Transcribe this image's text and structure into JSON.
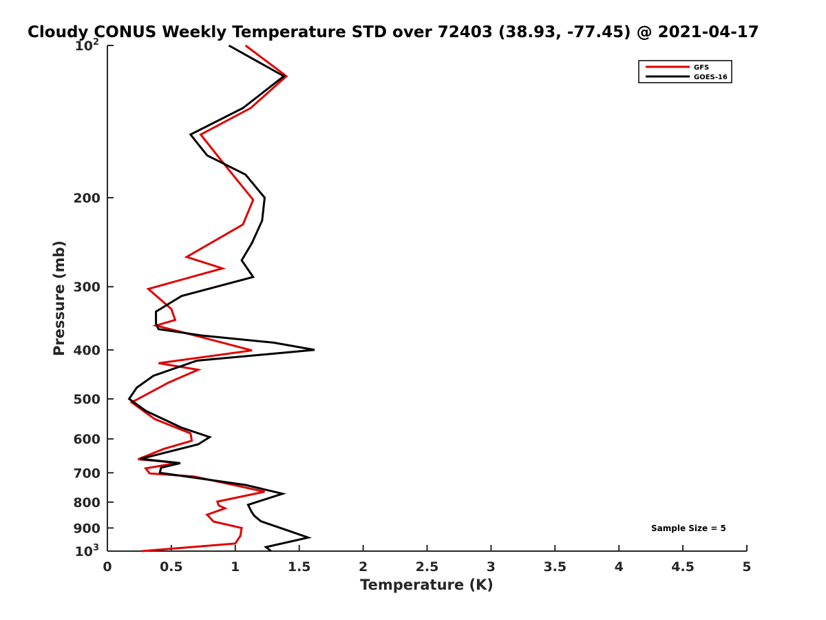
{
  "chart_data": {
    "type": "line",
    "title": "Cloudy CONUS Weekly Temperature STD over 72403 (38.93, -77.45) @ 2021-04-17",
    "xlabel": "Temperature (K)",
    "ylabel": "Pressure (mb)",
    "xlim": [
      0,
      5
    ],
    "ylim": [
      100,
      1000
    ],
    "y_scale": "log",
    "y_reversed": true,
    "x_ticks": [
      "0",
      "0.5",
      "1",
      "1.5",
      "2",
      "2.5",
      "3",
      "3.5",
      "4",
      "4.5",
      "5"
    ],
    "y_ticks": [
      {
        "value": 100,
        "base": "10",
        "exp": "2"
      },
      {
        "value": 200,
        "label": "200"
      },
      {
        "value": 300,
        "label": "300"
      },
      {
        "value": 400,
        "label": "400"
      },
      {
        "value": 500,
        "label": "500"
      },
      {
        "value": 600,
        "label": "600"
      },
      {
        "value": 700,
        "label": "700"
      },
      {
        "value": 800,
        "label": "800"
      },
      {
        "value": 900,
        "label": "900"
      },
      {
        "value": 1000,
        "base": "10",
        "exp": "3"
      }
    ],
    "legend_position": "top-right",
    "grid": false,
    "annotation": "Sample Size = 5",
    "series": [
      {
        "name": "GFS",
        "color": "#e00000",
        "points": [
          [
            1.08,
            100
          ],
          [
            1.4,
            115
          ],
          [
            1.12,
            133
          ],
          [
            0.73,
            150
          ],
          [
            0.9,
            170
          ],
          [
            1.14,
            202
          ],
          [
            1.06,
            226
          ],
          [
            0.62,
            262
          ],
          [
            0.9,
            276
          ],
          [
            0.32,
            303
          ],
          [
            0.5,
            332
          ],
          [
            0.53,
            349
          ],
          [
            0.38,
            358
          ],
          [
            0.71,
            376
          ],
          [
            1.13,
            401
          ],
          [
            0.4,
            425
          ],
          [
            0.71,
            438
          ],
          [
            0.48,
            464
          ],
          [
            0.19,
            508
          ],
          [
            0.37,
            548
          ],
          [
            0.65,
            585
          ],
          [
            0.66,
            605
          ],
          [
            0.44,
            628
          ],
          [
            0.24,
            658
          ],
          [
            0.55,
            669
          ],
          [
            0.3,
            686
          ],
          [
            0.33,
            702
          ],
          [
            0.68,
            712
          ],
          [
            1.23,
            763
          ],
          [
            0.86,
            798
          ],
          [
            0.87,
            812
          ],
          [
            0.92,
            823
          ],
          [
            0.78,
            847
          ],
          [
            0.83,
            874
          ],
          [
            1.05,
            900
          ],
          [
            1.04,
            933
          ],
          [
            1.0,
            966
          ],
          [
            0.27,
            1000
          ]
        ]
      },
      {
        "name": "GOES-16",
        "color": "#000000",
        "points": [
          [
            0.95,
            100
          ],
          [
            1.38,
            115
          ],
          [
            1.06,
            133
          ],
          [
            0.65,
            150
          ],
          [
            0.78,
            165
          ],
          [
            1.08,
            180
          ],
          [
            1.23,
            200
          ],
          [
            1.21,
            222
          ],
          [
            1.13,
            246
          ],
          [
            1.05,
            266
          ],
          [
            1.14,
            287
          ],
          [
            0.58,
            313
          ],
          [
            0.38,
            336
          ],
          [
            0.38,
            355
          ],
          [
            0.4,
            364
          ],
          [
            0.75,
            375
          ],
          [
            1.3,
            387
          ],
          [
            1.62,
            400
          ],
          [
            0.7,
            420
          ],
          [
            0.36,
            450
          ],
          [
            0.23,
            475
          ],
          [
            0.17,
            500
          ],
          [
            0.3,
            528
          ],
          [
            0.58,
            570
          ],
          [
            0.8,
            595
          ],
          [
            0.71,
            615
          ],
          [
            0.46,
            638
          ],
          [
            0.26,
            657
          ],
          [
            0.57,
            670
          ],
          [
            0.42,
            684
          ],
          [
            0.41,
            700
          ],
          [
            1.08,
            740
          ],
          [
            1.37,
            770
          ],
          [
            1.1,
            810
          ],
          [
            1.13,
            839
          ],
          [
            1.15,
            852
          ],
          [
            1.2,
            873
          ],
          [
            1.43,
            914
          ],
          [
            1.57,
            940
          ],
          [
            1.24,
            982
          ],
          [
            1.28,
            1000
          ]
        ]
      }
    ]
  }
}
